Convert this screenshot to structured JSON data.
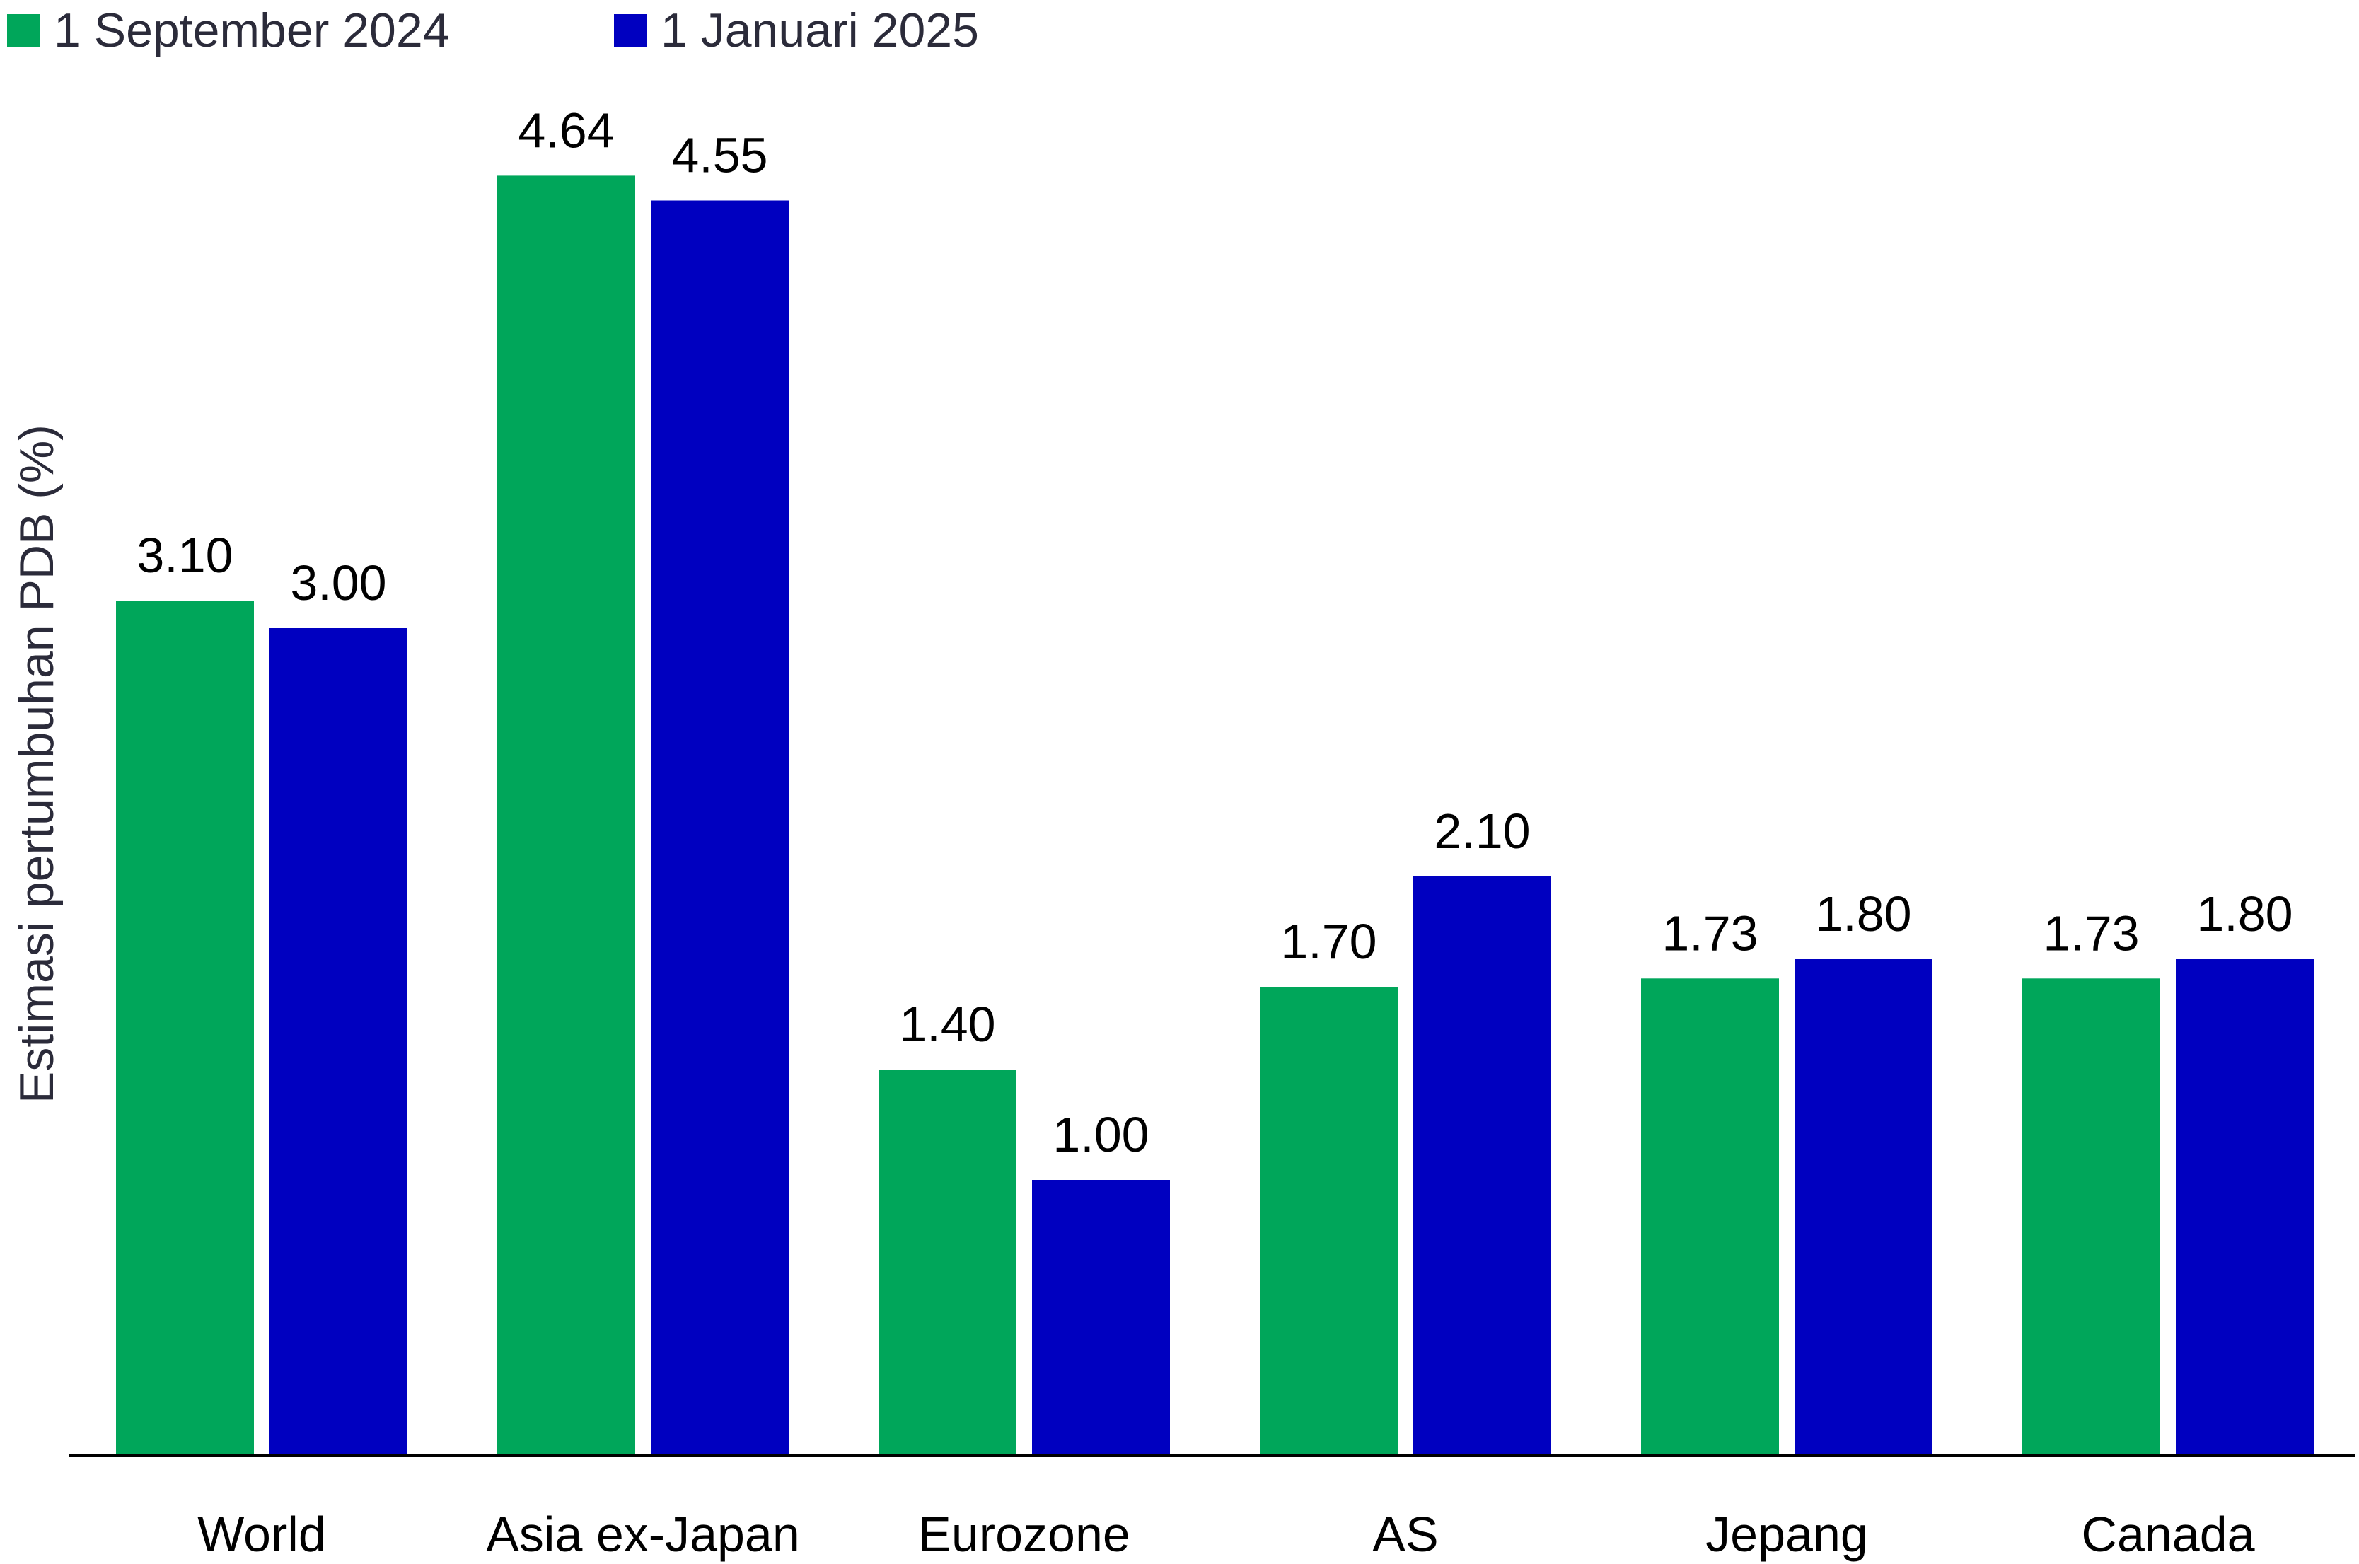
{
  "chart_data": {
    "type": "bar",
    "categories": [
      "World",
      "Asia ex-Japan",
      "Eurozone",
      "AS",
      "Jepang",
      "Canada"
    ],
    "series": [
      {
        "name": "1 September 2024",
        "color": "#00A65A",
        "values": [
          3.1,
          4.64,
          1.4,
          1.7,
          1.73,
          1.73
        ],
        "labels": [
          "3.10",
          "4.64",
          "1.40",
          "1.70",
          "1.73",
          "1.73"
        ]
      },
      {
        "name": "1 Januari 2025",
        "color": "#0000C0",
        "values": [
          3.0,
          4.55,
          1.0,
          2.1,
          1.8,
          1.8
        ],
        "labels": [
          "3.00",
          "4.55",
          "1.00",
          "2.10",
          "1.80",
          "1.80"
        ]
      }
    ],
    "ylabel": "Estimasi pertumbuhan PDB (%)",
    "xlabel": "",
    "ylim": [
      0,
      5
    ],
    "grid": false,
    "legend_position": "top-left"
  }
}
